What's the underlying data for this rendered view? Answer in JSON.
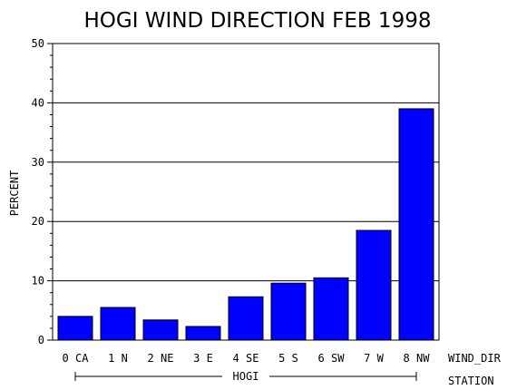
{
  "chart_data": {
    "type": "bar",
    "title": "HOGI WIND DIRECTION FEB 1998",
    "ylabel": "PERCENT",
    "xlabel": "WIND_DIR",
    "group_axis_label": "STATION",
    "group_label": "HOGI",
    "categories": [
      "0 CA",
      "1 N",
      "2 NE",
      "3 E",
      "4 SE",
      "5 S",
      "6 SW",
      "7 W",
      "8 NW"
    ],
    "values": [
      4.0,
      5.5,
      3.4,
      2.3,
      7.3,
      9.6,
      10.5,
      18.5,
      39.0
    ],
    "ylim": [
      0,
      50
    ],
    "yticks": [
      0,
      10,
      20,
      30,
      40,
      50
    ],
    "ytick_labels": [
      "0",
      "10",
      "20",
      "30",
      "40",
      "50"
    ],
    "grid": true,
    "bar_color": "#0000ff"
  }
}
